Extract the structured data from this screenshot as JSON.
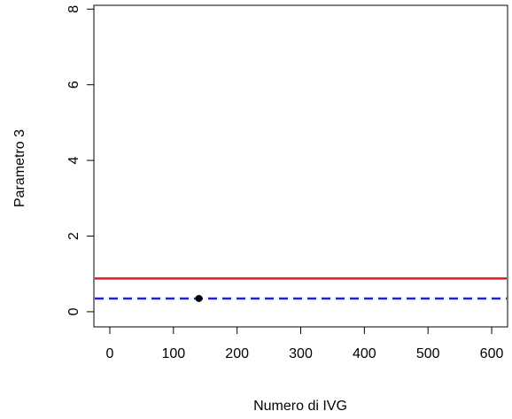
{
  "chart_data": {
    "type": "scatter",
    "title": "",
    "xlabel": "Numero di IVG",
    "ylabel": "Parametro 3",
    "xlim": [
      -25,
      625
    ],
    "ylim": [
      -0.4,
      8.1
    ],
    "xticks": [
      0,
      100,
      200,
      300,
      400,
      500,
      600
    ],
    "yticks": [
      0,
      2,
      4,
      6,
      8
    ],
    "grid": false,
    "legend": "none",
    "points": [
      {
        "x": 140,
        "y": 0.35,
        "color": "#000000"
      }
    ],
    "hlines": [
      {
        "y": 0.88,
        "color": "#e31a1c",
        "style": "solid"
      },
      {
        "y": 0.35,
        "color": "#1f1fe0",
        "style": "dashed"
      }
    ]
  }
}
